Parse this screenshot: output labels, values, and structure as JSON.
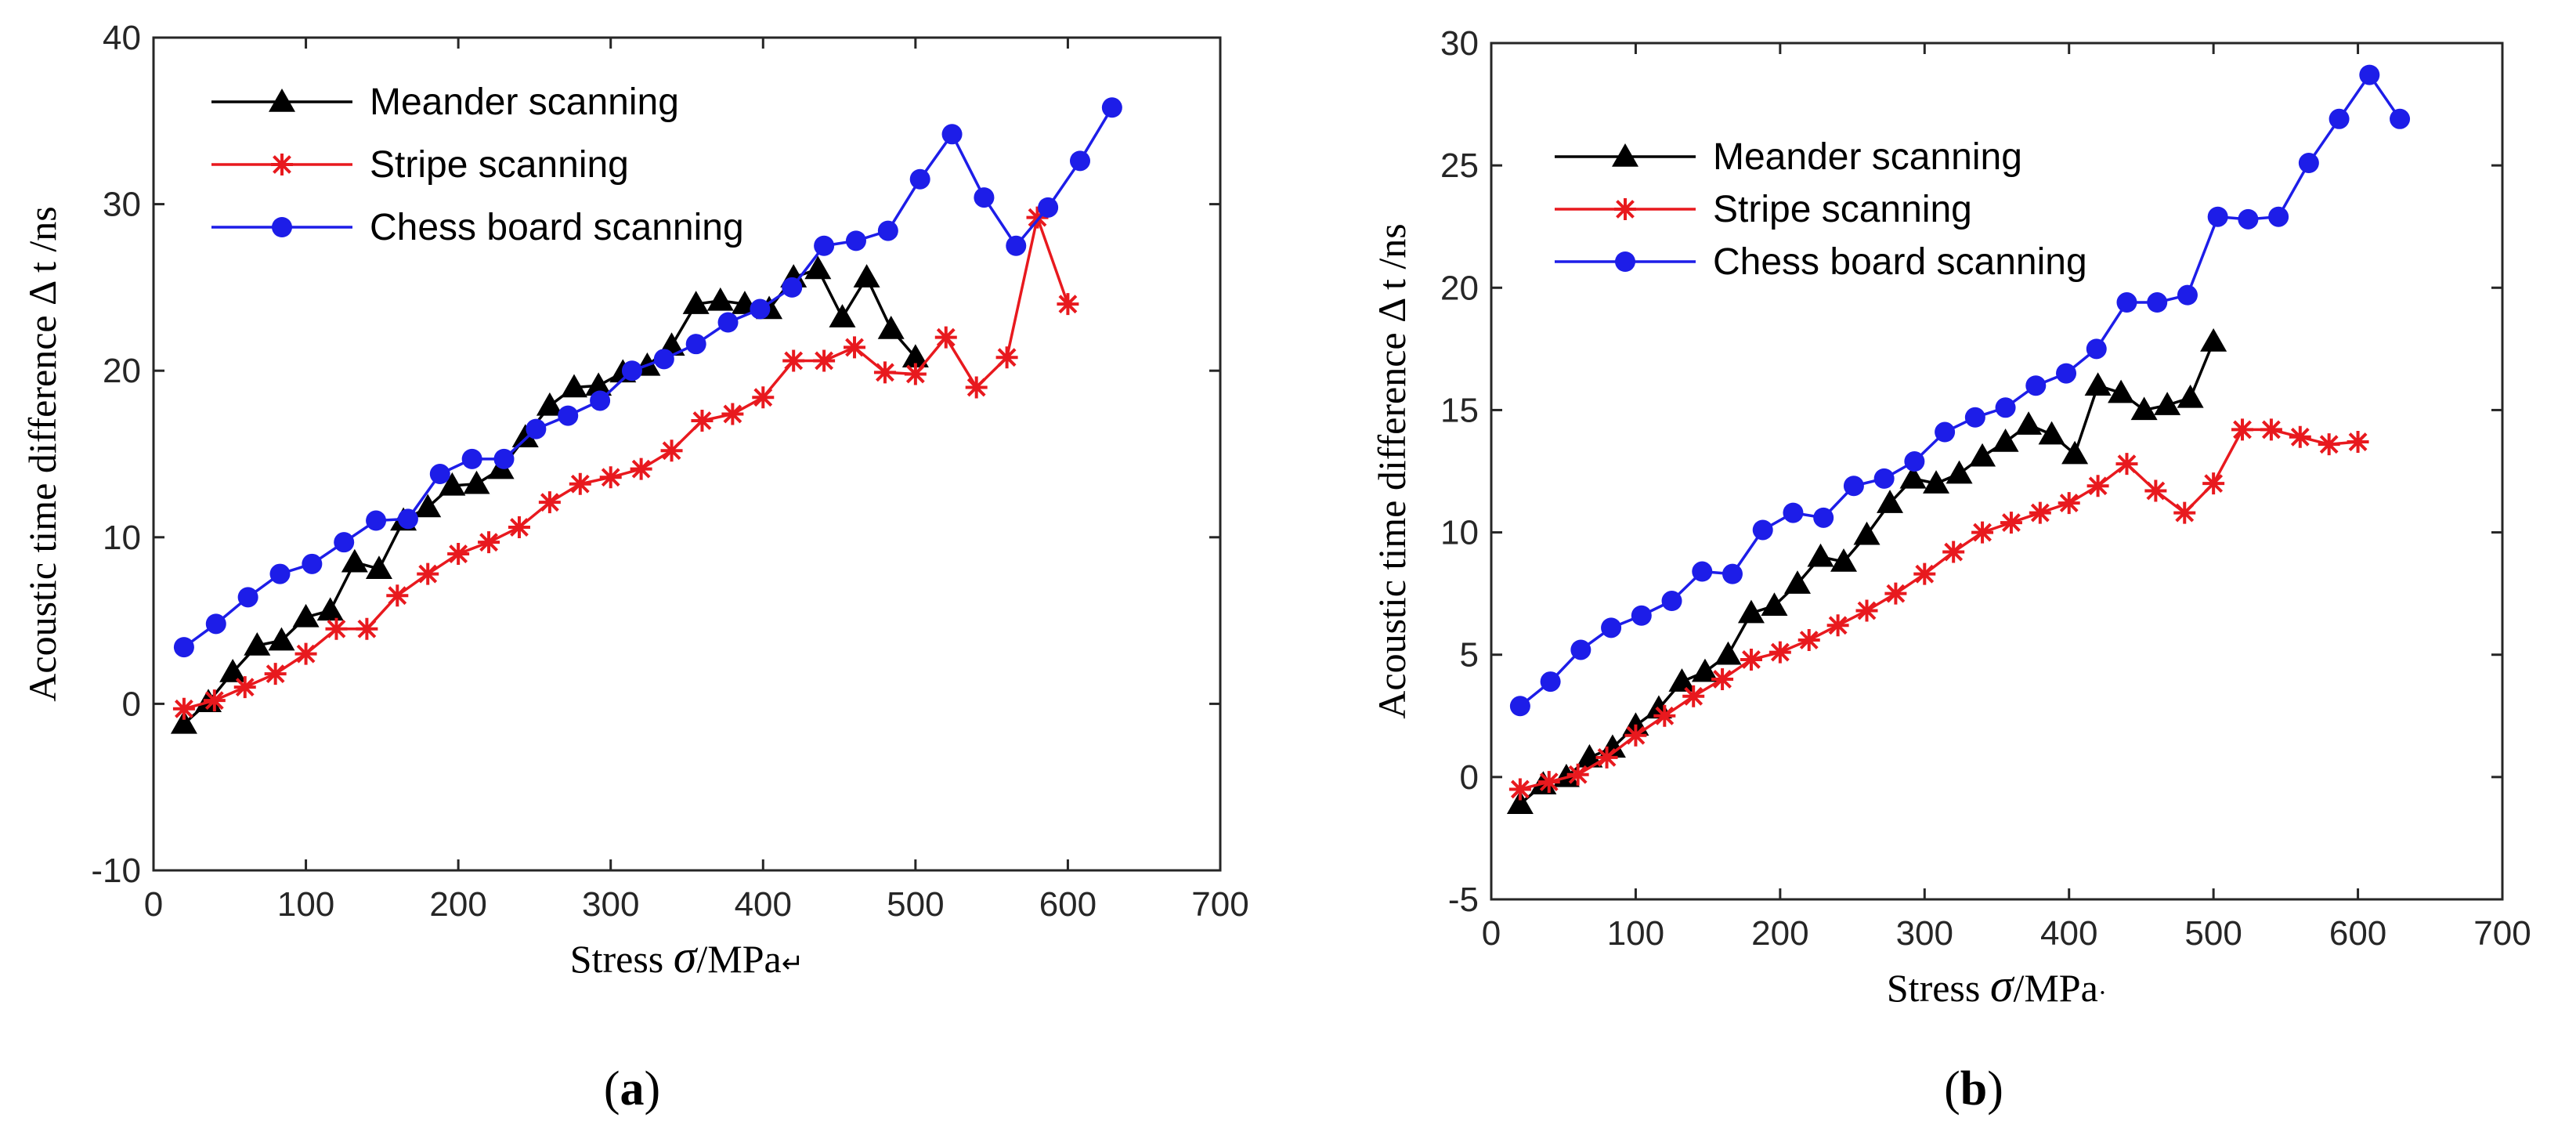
{
  "chart_data": [
    {
      "type": "line",
      "panel": "a",
      "xlabel_prefix": "Stress ",
      "xlabel_symbol": "σ",
      "xlabel_suffix": "/MPa",
      "xlabel_trail": "↵",
      "ylabel": "Acoustic time difference Δ t /ns",
      "xlim": [
        0,
        700
      ],
      "ylim": [
        -10,
        40
      ],
      "xticks": [
        0,
        100,
        200,
        300,
        400,
        500,
        600,
        700
      ],
      "yticks": [
        -10,
        0,
        10,
        20,
        30,
        40
      ],
      "legend_position": "top-left",
      "grid": false,
      "series": [
        {
          "name": "Meander scanning",
          "color": "#000000",
          "marker": "triangle",
          "x": [
            20,
            36,
            52,
            68,
            84,
            100,
            116,
            132,
            148,
            164,
            180,
            196,
            212,
            228,
            244,
            260,
            276,
            292,
            308,
            324,
            340,
            356,
            372,
            388,
            404,
            420,
            436,
            452,
            468,
            484,
            500
          ],
          "y": [
            -1.2,
            0.1,
            1.9,
            3.5,
            3.8,
            5.2,
            5.6,
            8.5,
            8.1,
            11.0,
            11.8,
            13.1,
            13.2,
            14.1,
            16.0,
            17.9,
            19.0,
            19.1,
            19.9,
            20.3,
            21.5,
            24.0,
            24.2,
            24.0,
            23.7,
            25.6,
            26.1,
            23.2,
            25.6,
            22.5,
            20.8
          ]
        },
        {
          "name": "Stripe scanning",
          "color": "#e8191e",
          "marker": "asterisk",
          "x": [
            20,
            40,
            60,
            80,
            100,
            120,
            140,
            160,
            180,
            200,
            220,
            240,
            260,
            280,
            300,
            320,
            340,
            360,
            380,
            400,
            420,
            440,
            460,
            480,
            500,
            520,
            540,
            560,
            580,
            600
          ],
          "y": [
            -0.3,
            0.2,
            1.0,
            1.8,
            3.0,
            4.5,
            4.5,
            6.5,
            7.8,
            9.0,
            9.7,
            10.6,
            12.1,
            13.2,
            13.6,
            14.1,
            15.2,
            17.0,
            17.4,
            18.4,
            20.6,
            20.6,
            21.4,
            19.9,
            19.8,
            22.0,
            19.0,
            20.8,
            29.2,
            24.0
          ]
        },
        {
          "name": "Chess board scanning",
          "color": "#1d1de8",
          "marker": "circle",
          "x": [
            20,
            41,
            62,
            83,
            104,
            125,
            146,
            167,
            188,
            209,
            230,
            251,
            272,
            293,
            314,
            335,
            356,
            377,
            398,
            419,
            440,
            461,
            482,
            503,
            524,
            545,
            566,
            587,
            608,
            629
          ],
          "y": [
            3.4,
            4.8,
            6.4,
            7.8,
            8.4,
            9.7,
            11.0,
            11.1,
            13.8,
            14.7,
            14.7,
            16.5,
            17.3,
            18.2,
            20.0,
            20.7,
            21.6,
            22.9,
            23.7,
            25.0,
            27.5,
            27.8,
            28.4,
            31.5,
            34.2,
            30.4,
            27.5,
            29.8,
            32.6,
            35.8
          ]
        }
      ]
    },
    {
      "type": "line",
      "panel": "b",
      "xlabel_prefix": "Stress ",
      "xlabel_symbol": "σ",
      "xlabel_suffix": "/MPa",
      "xlabel_trail": "·",
      "ylabel": "Acoustic time difference Δ t /ns",
      "xlim": [
        0,
        700
      ],
      "ylim": [
        -5,
        30
      ],
      "xticks": [
        0,
        100,
        200,
        300,
        400,
        500,
        600,
        700
      ],
      "yticks": [
        -5,
        0,
        5,
        10,
        15,
        20,
        25,
        30
      ],
      "legend_position": "top-left",
      "grid": false,
      "series": [
        {
          "name": "Meander scanning",
          "color": "#000000",
          "marker": "triangle",
          "x": [
            20,
            36,
            52,
            68,
            84,
            100,
            116,
            132,
            148,
            164,
            180,
            196,
            212,
            228,
            244,
            260,
            276,
            292,
            308,
            324,
            340,
            356,
            372,
            388,
            404,
            420,
            436,
            452,
            468,
            484,
            500
          ],
          "y": [
            -1.1,
            -0.3,
            0.0,
            0.8,
            1.2,
            2.1,
            2.8,
            3.9,
            4.3,
            5.0,
            6.7,
            7.0,
            7.9,
            9.0,
            8.8,
            9.9,
            11.2,
            12.2,
            12.0,
            12.4,
            13.1,
            13.7,
            14.4,
            14.0,
            13.2,
            16.0,
            15.7,
            15.0,
            15.2,
            15.5,
            17.8
          ]
        },
        {
          "name": "Stripe scanning",
          "color": "#e8191e",
          "marker": "asterisk",
          "x": [
            20,
            40,
            60,
            80,
            100,
            120,
            140,
            160,
            180,
            200,
            220,
            240,
            260,
            280,
            300,
            320,
            340,
            360,
            380,
            400,
            420,
            440,
            460,
            480,
            500,
            520,
            540,
            560,
            580,
            600
          ],
          "y": [
            -0.5,
            -0.2,
            0.1,
            0.8,
            1.7,
            2.5,
            3.3,
            4.0,
            4.8,
            5.1,
            5.6,
            6.2,
            6.8,
            7.5,
            8.3,
            9.2,
            10.0,
            10.4,
            10.8,
            11.2,
            11.9,
            12.8,
            11.7,
            10.8,
            12.0,
            14.2,
            14.2,
            13.9,
            13.6,
            13.7
          ]
        },
        {
          "name": "Chess board scanning",
          "color": "#1d1de8",
          "marker": "circle",
          "x": [
            20,
            41,
            62,
            83,
            104,
            125,
            146,
            167,
            188,
            209,
            230,
            251,
            272,
            293,
            314,
            335,
            356,
            377,
            398,
            419,
            440,
            461,
            482,
            503,
            524,
            545,
            566,
            587,
            608,
            629
          ],
          "y": [
            2.9,
            3.9,
            5.2,
            6.1,
            6.6,
            7.2,
            8.4,
            8.3,
            10.1,
            10.8,
            10.6,
            11.9,
            12.2,
            12.9,
            14.1,
            14.7,
            15.1,
            16.0,
            16.5,
            17.5,
            19.4,
            19.4,
            19.7,
            22.9,
            22.8,
            22.9,
            25.1,
            26.9,
            28.7,
            26.9
          ]
        }
      ]
    }
  ],
  "captions": [
    "(a)",
    "(b)"
  ]
}
